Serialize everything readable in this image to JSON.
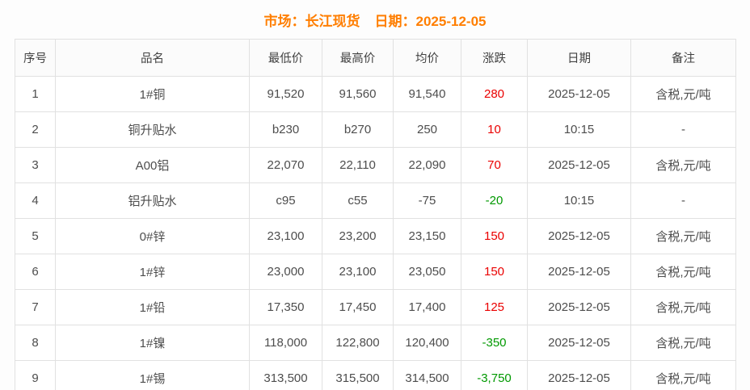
{
  "header": {
    "market_label": "市场：长江现货",
    "date_label": "日期：2025-12-05"
  },
  "colors": {
    "accent": "#ff7e00",
    "up": "#ea0000",
    "down": "#009900",
    "border": "#e1e1e1"
  },
  "table": {
    "columns": [
      "序号",
      "品名",
      "最低价",
      "最高价",
      "均价",
      "涨跌",
      "日期",
      "备注"
    ],
    "rows": [
      {
        "no": "1",
        "name": "1#铜",
        "low": "91,520",
        "high": "91,560",
        "avg": "91,540",
        "change": "280",
        "trend": "up",
        "date": "2025-12-05",
        "note": "含税,元/吨"
      },
      {
        "no": "2",
        "name": "铜升贴水",
        "low": "b230",
        "high": "b270",
        "avg": "250",
        "change": "10",
        "trend": "up",
        "date": "10:15",
        "note": "-"
      },
      {
        "no": "3",
        "name": "A00铝",
        "low": "22,070",
        "high": "22,110",
        "avg": "22,090",
        "change": "70",
        "trend": "up",
        "date": "2025-12-05",
        "note": "含税,元/吨"
      },
      {
        "no": "4",
        "name": "铝升贴水",
        "low": "c95",
        "high": "c55",
        "avg": "-75",
        "change": "-20",
        "trend": "down",
        "date": "10:15",
        "note": "-"
      },
      {
        "no": "5",
        "name": "0#锌",
        "low": "23,100",
        "high": "23,200",
        "avg": "23,150",
        "change": "150",
        "trend": "up",
        "date": "2025-12-05",
        "note": "含税,元/吨"
      },
      {
        "no": "6",
        "name": "1#锌",
        "low": "23,000",
        "high": "23,100",
        "avg": "23,050",
        "change": "150",
        "trend": "up",
        "date": "2025-12-05",
        "note": "含税,元/吨"
      },
      {
        "no": "7",
        "name": "1#铅",
        "low": "17,350",
        "high": "17,450",
        "avg": "17,400",
        "change": "125",
        "trend": "up",
        "date": "2025-12-05",
        "note": "含税,元/吨"
      },
      {
        "no": "8",
        "name": "1#镍",
        "low": "118,000",
        "high": "122,800",
        "avg": "120,400",
        "change": "-350",
        "trend": "down",
        "date": "2025-12-05",
        "note": "含税,元/吨"
      },
      {
        "no": "9",
        "name": "1#锡",
        "low": "313,500",
        "high": "315,500",
        "avg": "314,500",
        "change": "-3,750",
        "trend": "down",
        "date": "2025-12-05",
        "note": "含税,元/吨"
      }
    ]
  }
}
